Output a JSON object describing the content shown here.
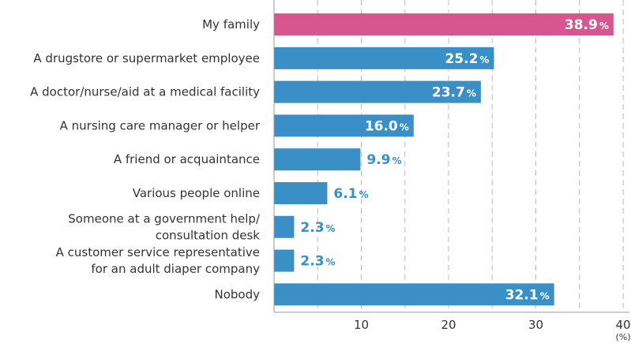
{
  "chart_data": {
    "type": "bar",
    "orientation": "horizontal",
    "categories": [
      [
        "My family"
      ],
      [
        "A drugstore or supermarket employee"
      ],
      [
        "A doctor/nurse/aid at a medical facility"
      ],
      [
        "A nursing care manager or helper"
      ],
      [
        "A friend or acquaintance"
      ],
      [
        "Various people online"
      ],
      [
        "Someone at a government help/",
        "consultation desk"
      ],
      [
        "A customer service representative",
        "for an adult diaper company"
      ],
      [
        "Nobody"
      ]
    ],
    "values": [
      38.9,
      25.2,
      23.7,
      16.0,
      9.9,
      6.1,
      2.3,
      2.3,
      32.1
    ],
    "value_labels": [
      "38.9",
      "25.2",
      "23.7",
      "16.0",
      "9.9",
      "6.1",
      "2.3",
      "2.3",
      "32.1"
    ],
    "value_suffix": "%",
    "highlight_index": 0,
    "colors": {
      "highlight": "#d9558f",
      "bar": "#3a8fc6",
      "label_outside": "#3a8fc6",
      "label_inside": "#ffffff",
      "axis": "#999999",
      "grid": "#bbbbbb"
    },
    "xlim": [
      0,
      40
    ],
    "xticks": [
      10,
      20,
      30,
      40
    ],
    "x_unit": "(%)",
    "grid": "dashed vertical"
  }
}
